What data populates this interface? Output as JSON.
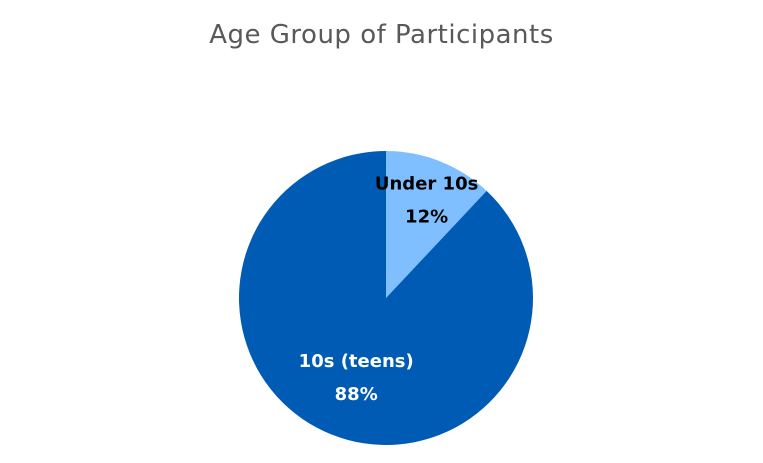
{
  "chart_data": {
    "type": "pie",
    "title": "Age Group of Participants",
    "categories": [
      "Under 10s",
      "10s (teens)"
    ],
    "values": [
      12,
      88
    ],
    "value_labels": [
      "12%",
      "88%"
    ],
    "colors": [
      "#7FBFFF",
      "#005BB5"
    ],
    "label_colors": [
      "#000000",
      "#ffffff"
    ],
    "start_angle_deg": 0,
    "direction": "clockwise",
    "legend": "none"
  }
}
